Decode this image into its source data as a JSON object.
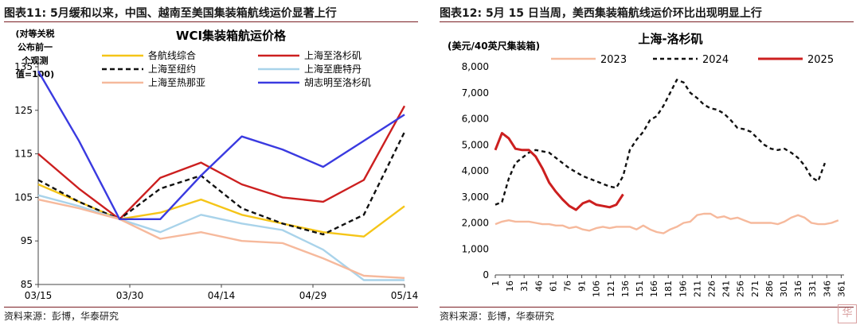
{
  "left": {
    "fig_title": "图表11:  5月缓和以来，中国、越南至美国集装箱航线运价显著上行",
    "source": "资料来源：彭博，华泰研究"
  },
  "right": {
    "fig_title": "图表12:  5月 15 日当周，美西集装箱航线运价环比出现明显上行",
    "source": "资料来源：彭博，华泰研究"
  },
  "watermark_icon": "logo-stamp",
  "colors": {
    "rule": "#7a1f24",
    "yellow": "#f5c518",
    "red": "#cc1f1f",
    "black": "#111111",
    "lightblue": "#a9d3ea",
    "peach": "#f6b99c",
    "blue": "#3a3ae0"
  },
  "chart_data": [
    {
      "type": "line",
      "title": "WCI集装箱航运价格",
      "ylabel": "(对等关税公布前一个观测值=100)",
      "ylim": [
        85,
        135
      ],
      "yticks": [
        85,
        95,
        105,
        115,
        125,
        135
      ],
      "xticks": [
        "03/15",
        "03/30",
        "04/14",
        "04/29",
        "05/14"
      ],
      "legend": "top",
      "x": [
        "03/13",
        "03/20",
        "03/27",
        "04/03",
        "04/10",
        "04/17",
        "04/24",
        "05/01",
        "05/08",
        "05/15"
      ],
      "series": [
        {
          "name": "各航线综合",
          "color": "#f5c518",
          "values": [
            108,
            104,
            100,
            101.5,
            104.5,
            101,
            99,
            97,
            96,
            103
          ]
        },
        {
          "name": "上海至洛杉矶",
          "color": "#cc1f1f",
          "values": [
            115,
            107,
            100,
            109.5,
            113,
            108,
            105,
            104,
            109,
            126
          ]
        },
        {
          "name": "上海至纽约",
          "color": "#111111",
          "dash": true,
          "values": [
            109,
            104,
            100,
            107,
            110,
            102.5,
            99,
            96.5,
            101,
            120
          ]
        },
        {
          "name": "上海至鹿特丹",
          "color": "#a9d3ea",
          "values": [
            105.5,
            103,
            100,
            97,
            101,
            99,
            97.5,
            93,
            86,
            86
          ]
        },
        {
          "name": "上海至热那亚",
          "color": "#f6b99c",
          "values": [
            104.5,
            102.5,
            100,
            95.5,
            97,
            95,
            94.5,
            91,
            87,
            86.5
          ]
        },
        {
          "name": "胡志明至洛杉矶",
          "color": "#3a3ae0",
          "values": [
            134,
            118,
            100,
            100,
            110,
            119,
            116,
            112,
            118,
            124
          ]
        }
      ]
    },
    {
      "type": "line",
      "title": "上海-洛杉矶",
      "ylabel": "(美元/40英尺集装箱)",
      "ylim": [
        0,
        8000
      ],
      "yticks": [
        0,
        1000,
        2000,
        3000,
        4000,
        5000,
        6000,
        7000,
        8000
      ],
      "ytick_labels": [
        "0",
        "1,000",
        "2,000",
        "3,000",
        "4,000",
        "5,000",
        "6,000",
        "7,000",
        "8,000"
      ],
      "xlim": [
        1,
        364
      ],
      "xticks": [
        1,
        16,
        31,
        46,
        61,
        76,
        91,
        106,
        121,
        136,
        151,
        166,
        181,
        196,
        211,
        226,
        241,
        256,
        271,
        286,
        301,
        316,
        331,
        346,
        361
      ],
      "legend": "top",
      "series": [
        {
          "name": "2023",
          "color": "#f6b99c",
          "points": [
            [
              1,
              1950
            ],
            [
              8,
              2050
            ],
            [
              15,
              2100
            ],
            [
              22,
              2050
            ],
            [
              29,
              2050
            ],
            [
              36,
              2050
            ],
            [
              43,
              2000
            ],
            [
              50,
              1950
            ],
            [
              57,
              1950
            ],
            [
              64,
              1900
            ],
            [
              71,
              1900
            ],
            [
              78,
              1800
            ],
            [
              85,
              1850
            ],
            [
              92,
              1750
            ],
            [
              99,
              1700
            ],
            [
              106,
              1800
            ],
            [
              113,
              1850
            ],
            [
              120,
              1800
            ],
            [
              127,
              1850
            ],
            [
              134,
              1850
            ],
            [
              141,
              1850
            ],
            [
              148,
              1750
            ],
            [
              155,
              1900
            ],
            [
              162,
              1750
            ],
            [
              169,
              1650
            ],
            [
              176,
              1600
            ],
            [
              183,
              1750
            ],
            [
              190,
              1850
            ],
            [
              197,
              2000
            ],
            [
              204,
              2050
            ],
            [
              211,
              2300
            ],
            [
              218,
              2350
            ],
            [
              225,
              2350
            ],
            [
              232,
              2200
            ],
            [
              239,
              2250
            ],
            [
              246,
              2150
            ],
            [
              253,
              2200
            ],
            [
              260,
              2100
            ],
            [
              267,
              2000
            ],
            [
              274,
              2000
            ],
            [
              281,
              2000
            ],
            [
              288,
              2000
            ],
            [
              295,
              1950
            ],
            [
              302,
              2050
            ],
            [
              309,
              2200
            ],
            [
              316,
              2300
            ],
            [
              323,
              2200
            ],
            [
              330,
              2000
            ],
            [
              337,
              1950
            ],
            [
              344,
              1950
            ],
            [
              351,
              2000
            ],
            [
              358,
              2100
            ]
          ]
        },
        {
          "name": "2024",
          "color": "#111111",
          "dash": true,
          "points": [
            [
              1,
              2700
            ],
            [
              8,
              2800
            ],
            [
              15,
              3700
            ],
            [
              22,
              4300
            ],
            [
              29,
              4500
            ],
            [
              36,
              4700
            ],
            [
              43,
              4800
            ],
            [
              50,
              4750
            ],
            [
              57,
              4700
            ],
            [
              64,
              4500
            ],
            [
              71,
              4300
            ],
            [
              78,
              4100
            ],
            [
              85,
              3950
            ],
            [
              92,
              3800
            ],
            [
              99,
              3700
            ],
            [
              106,
              3600
            ],
            [
              113,
              3500
            ],
            [
              120,
              3400
            ],
            [
              127,
              3350
            ],
            [
              134,
              3800
            ],
            [
              141,
              4800
            ],
            [
              148,
              5200
            ],
            [
              155,
              5500
            ],
            [
              162,
              5950
            ],
            [
              169,
              6100
            ],
            [
              176,
              6500
            ],
            [
              183,
              7000
            ],
            [
              190,
              7500
            ],
            [
              197,
              7400
            ],
            [
              204,
              7000
            ],
            [
              211,
              6800
            ],
            [
              218,
              6550
            ],
            [
              225,
              6400
            ],
            [
              232,
              6350
            ],
            [
              239,
              6200
            ],
            [
              246,
              5950
            ],
            [
              253,
              5650
            ],
            [
              260,
              5600
            ],
            [
              267,
              5500
            ],
            [
              274,
              5250
            ],
            [
              281,
              5000
            ],
            [
              288,
              4850
            ],
            [
              295,
              4800
            ],
            [
              302,
              4850
            ],
            [
              309,
              4700
            ],
            [
              316,
              4500
            ],
            [
              323,
              4200
            ],
            [
              330,
              3750
            ],
            [
              337,
              3600
            ],
            [
              344,
              4300
            ]
          ]
        },
        {
          "name": "2025",
          "color": "#cc1f1f",
          "points": [
            [
              1,
              4800
            ],
            [
              8,
              5450
            ],
            [
              15,
              5250
            ],
            [
              22,
              4850
            ],
            [
              29,
              4800
            ],
            [
              36,
              4800
            ],
            [
              43,
              4550
            ],
            [
              50,
              4100
            ],
            [
              57,
              3550
            ],
            [
              64,
              3200
            ],
            [
              71,
              2900
            ],
            [
              78,
              2650
            ],
            [
              85,
              2500
            ],
            [
              92,
              2750
            ],
            [
              99,
              2850
            ],
            [
              106,
              2700
            ],
            [
              113,
              2650
            ],
            [
              120,
              2600
            ],
            [
              127,
              2700
            ],
            [
              134,
              3100
            ]
          ]
        }
      ]
    }
  ]
}
